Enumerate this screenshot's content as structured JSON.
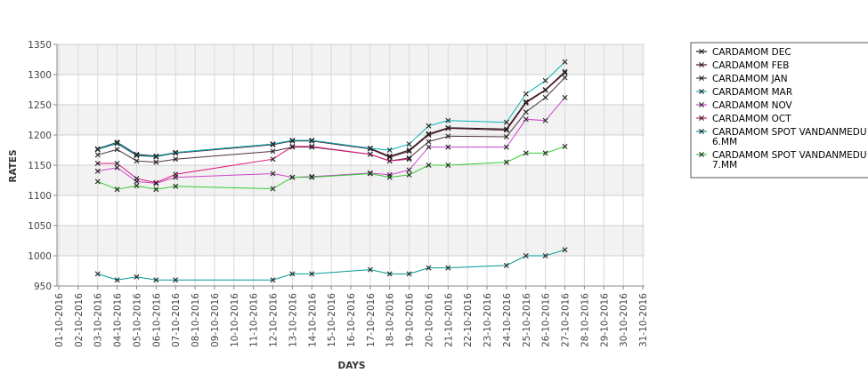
{
  "chart_data": {
    "type": "line",
    "xlabel": "DAYS",
    "ylabel": "RATES",
    "ylim": [
      950,
      1350
    ],
    "yticks": [
      950,
      1000,
      1050,
      1100,
      1150,
      1200,
      1250,
      1300,
      1350
    ],
    "x_dates": [
      "01-10-2016",
      "02-10-2016",
      "03-10-2016",
      "04-10-2016",
      "05-10-2016",
      "06-10-2016",
      "07-10-2016",
      "08-10-2016",
      "09-10-2016",
      "10-10-2016",
      "11-10-2016",
      "12-10-2016",
      "13-10-2016",
      "14-10-2016",
      "15-10-2016",
      "16-10-2016",
      "17-10-2016",
      "18-10-2016",
      "19-10-2016",
      "20-10-2016",
      "21-10-2016",
      "22-10-2016",
      "23-10-2016",
      "24-10-2016",
      "25-10-2016",
      "26-10-2016",
      "27-10-2016",
      "28-10-2016",
      "29-10-2016",
      "30-10-2016",
      "31-10-2016"
    ],
    "grid": true,
    "legend_position": "right",
    "series": [
      {
        "name": "CARDAMOM DEC",
        "color": "#1a1a1a",
        "x": [
          "03-10-2016",
          "04-10-2016",
          "05-10-2016",
          "06-10-2016",
          "07-10-2016",
          "12-10-2016",
          "13-10-2016",
          "14-10-2016",
          "17-10-2016",
          "18-10-2016",
          "19-10-2016",
          "20-10-2016",
          "21-10-2016",
          "24-10-2016",
          "25-10-2016",
          "26-10-2016",
          "27-10-2016"
        ],
        "y": [
          1177,
          1188,
          1168,
          1165,
          1171,
          1185,
          1191,
          1191,
          1178,
          1165,
          1175,
          1202,
          1212,
          1210,
          1255,
          1275,
          1305
        ]
      },
      {
        "name": "CARDAMOM FEB",
        "color": "#5a0f2e",
        "x": [
          "03-10-2016",
          "04-10-2016",
          "05-10-2016",
          "06-10-2016",
          "07-10-2016",
          "12-10-2016",
          "13-10-2016",
          "14-10-2016",
          "17-10-2016",
          "18-10-2016",
          "19-10-2016",
          "20-10-2016",
          "21-10-2016",
          "24-10-2016",
          "25-10-2016",
          "26-10-2016",
          "27-10-2016"
        ],
        "y": [
          1176,
          1186,
          1166,
          1164,
          1170,
          1184,
          1190,
          1190,
          1177,
          1163,
          1173,
          1200,
          1211,
          1208,
          1253,
          1274,
          1303
        ]
      },
      {
        "name": "CARDAMOM JAN",
        "color": "#4a3040",
        "x": [
          "03-10-2016",
          "04-10-2016",
          "05-10-2016",
          "06-10-2016",
          "07-10-2016",
          "12-10-2016",
          "13-10-2016",
          "14-10-2016",
          "17-10-2016",
          "18-10-2016",
          "19-10-2016",
          "20-10-2016",
          "21-10-2016",
          "24-10-2016",
          "25-10-2016",
          "26-10-2016",
          "27-10-2016"
        ],
        "y": [
          1167,
          1176,
          1157,
          1155,
          1160,
          1173,
          1180,
          1180,
          1168,
          1157,
          1162,
          1189,
          1198,
          1197,
          1238,
          1262,
          1295
        ]
      },
      {
        "name": "CARDAMOM MAR",
        "color": "#00b3b3",
        "x": [
          "03-10-2016",
          "04-10-2016",
          "05-10-2016",
          "06-10-2016",
          "07-10-2016",
          "12-10-2016",
          "13-10-2016",
          "14-10-2016",
          "17-10-2016",
          "18-10-2016",
          "19-10-2016",
          "20-10-2016",
          "21-10-2016",
          "24-10-2016",
          "25-10-2016",
          "26-10-2016",
          "27-10-2016"
        ],
        "y": [
          1176,
          1187,
          1167,
          1164,
          1171,
          1185,
          1191,
          1191,
          1178,
          1175,
          1185,
          1215,
          1224,
          1221,
          1268,
          1290,
          1321
        ]
      },
      {
        "name": "CARDAMOM NOV",
        "color": "#cc44cc",
        "x": [
          "03-10-2016",
          "04-10-2016",
          "05-10-2016",
          "06-10-2016",
          "07-10-2016",
          "12-10-2016",
          "13-10-2016",
          "14-10-2016",
          "17-10-2016",
          "18-10-2016",
          "19-10-2016",
          "20-10-2016",
          "21-10-2016",
          "24-10-2016",
          "25-10-2016",
          "26-10-2016",
          "27-10-2016"
        ],
        "y": [
          1140,
          1146,
          1123,
          1120,
          1130,
          1136,
          1130,
          1131,
          1137,
          1134,
          1142,
          1180,
          1180,
          1180,
          1226,
          1224,
          1262
        ]
      },
      {
        "name": "CARDAMOM OCT",
        "color": "#e0107a",
        "x": [
          "03-10-2016",
          "04-10-2016",
          "05-10-2016",
          "06-10-2016",
          "07-10-2016",
          "12-10-2016",
          "13-10-2016",
          "14-10-2016",
          "17-10-2016",
          "18-10-2016",
          "19-10-2016"
        ],
        "y": [
          1153,
          1153,
          1128,
          1121,
          1135,
          1160,
          1181,
          1181,
          1168,
          1157,
          1160
        ]
      },
      {
        "name": "CARDAMOM SPOT VANDANMEDU 6.MM",
        "color": "#009999",
        "x": [
          "03-10-2016",
          "04-10-2016",
          "05-10-2016",
          "06-10-2016",
          "07-10-2016",
          "12-10-2016",
          "13-10-2016",
          "14-10-2016",
          "17-10-2016",
          "18-10-2016",
          "19-10-2016",
          "20-10-2016",
          "21-10-2016",
          "24-10-2016",
          "25-10-2016",
          "26-10-2016",
          "27-10-2016"
        ],
        "y": [
          970,
          960,
          965,
          960,
          960,
          960,
          970,
          970,
          977,
          970,
          970,
          980,
          980,
          984,
          1000,
          1000,
          1010
        ]
      },
      {
        "name": "CARDAMOM SPOT VANDANMEDU 7.MM",
        "color": "#33cc33",
        "x": [
          "03-10-2016",
          "04-10-2016",
          "05-10-2016",
          "06-10-2016",
          "07-10-2016",
          "12-10-2016",
          "13-10-2016",
          "14-10-2016",
          "17-10-2016",
          "18-10-2016",
          "19-10-2016",
          "20-10-2016",
          "21-10-2016",
          "24-10-2016",
          "25-10-2016",
          "26-10-2016",
          "27-10-2016"
        ],
        "y": [
          1123,
          1110,
          1116,
          1110,
          1115,
          1111,
          1130,
          1130,
          1136,
          1130,
          1134,
          1150,
          1150,
          1155,
          1170,
          1170,
          1181
        ]
      }
    ]
  },
  "legend": {
    "items": [
      {
        "lines": [
          "CARDAMOM DEC"
        ]
      },
      {
        "lines": [
          "CARDAMOM FEB"
        ]
      },
      {
        "lines": [
          "CARDAMOM JAN"
        ]
      },
      {
        "lines": [
          "CARDAMOM MAR"
        ]
      },
      {
        "lines": [
          "CARDAMOM NOV"
        ]
      },
      {
        "lines": [
          "CARDAMOM OCT"
        ]
      },
      {
        "lines": [
          "CARDAMOM SPOT VANDANMEDU",
          "6.MM"
        ]
      },
      {
        "lines": [
          "CARDAMOM SPOT VANDANMEDU",
          "7.MM"
        ]
      }
    ]
  }
}
